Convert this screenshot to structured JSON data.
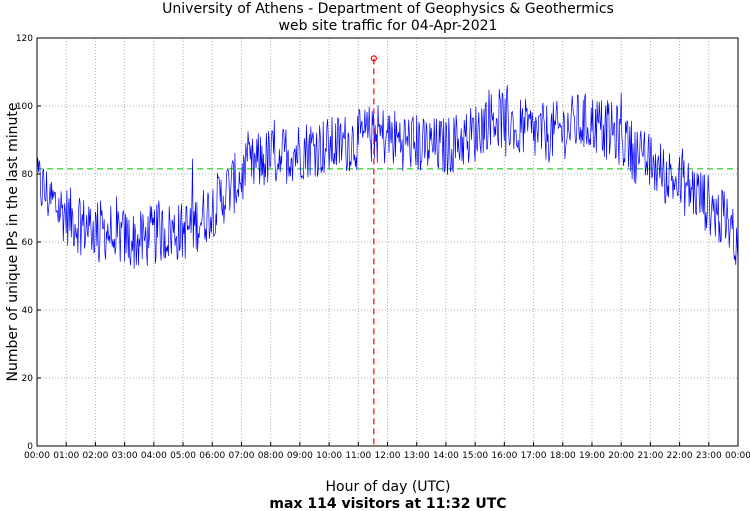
{
  "title": {
    "line1": "University of Athens - Department of Geophysics & Geothermics",
    "line2": "web site traffic for 04-Apr-2021"
  },
  "footer": {
    "xlabel": "Hour of day (UTC)",
    "summary": "max 114 visitors at 11:32 UTC"
  },
  "colors": {
    "series": "#0000ff",
    "mean_line": "#00c000",
    "max_marker": "#ff0000",
    "grid": "#b0b0b0"
  },
  "chart_data": {
    "type": "line",
    "title": "University of Athens - Department of Geophysics & Geothermics\nweb site traffic for 04-Apr-2021",
    "xlabel": "Hour of day (UTC)",
    "ylabel": "Number of unique IPs in the last minute",
    "xlim": [
      "00:00",
      "24:00"
    ],
    "ylim": [
      0,
      120
    ],
    "x_ticks": [
      "00:00",
      "01:00",
      "02:00",
      "03:00",
      "04:00",
      "05:00",
      "06:00",
      "07:00",
      "08:00",
      "09:00",
      "10:00",
      "11:00",
      "12:00",
      "13:00",
      "14:00",
      "15:00",
      "16:00",
      "17:00",
      "18:00",
      "19:00",
      "20:00",
      "21:00",
      "22:00",
      "23:00",
      "00:00"
    ],
    "y_ticks": [
      0,
      20,
      40,
      60,
      80,
      100,
      120
    ],
    "grid": true,
    "series": [
      {
        "x": [
          "00:00",
          "00:30",
          "01:00",
          "01:30",
          "02:00",
          "02:30",
          "03:00",
          "03:30",
          "04:00",
          "04:30",
          "05:00",
          "05:30",
          "06:00",
          "06:30",
          "07:00",
          "07:30",
          "08:00",
          "08:30",
          "09:00",
          "09:30",
          "10:00",
          "10:30",
          "11:00",
          "11:30",
          "12:00",
          "12:30",
          "13:00",
          "13:30",
          "14:00",
          "14:30",
          "15:00",
          "15:30",
          "16:00",
          "16:30",
          "17:00",
          "17:30",
          "18:00",
          "18:30",
          "19:00",
          "19:30",
          "20:00",
          "20:30",
          "21:00",
          "21:30",
          "22:00",
          "22:30",
          "23:00",
          "23:30",
          "24:00"
        ],
        "values": [
          78,
          72,
          68,
          65,
          64,
          63,
          61,
          60,
          62,
          63,
          63,
          66,
          70,
          75,
          79,
          83,
          85,
          86,
          87,
          88,
          88,
          89,
          90,
          92,
          91,
          90,
          89,
          88,
          88,
          90,
          92,
          97,
          96,
          94,
          92,
          92,
          93,
          95,
          95,
          93,
          91,
          86,
          83,
          80,
          77,
          75,
          71,
          66,
          61
        ]
      }
    ],
    "mean_line": 81.5,
    "max_point": {
      "x": "11:32",
      "value": 114
    }
  }
}
